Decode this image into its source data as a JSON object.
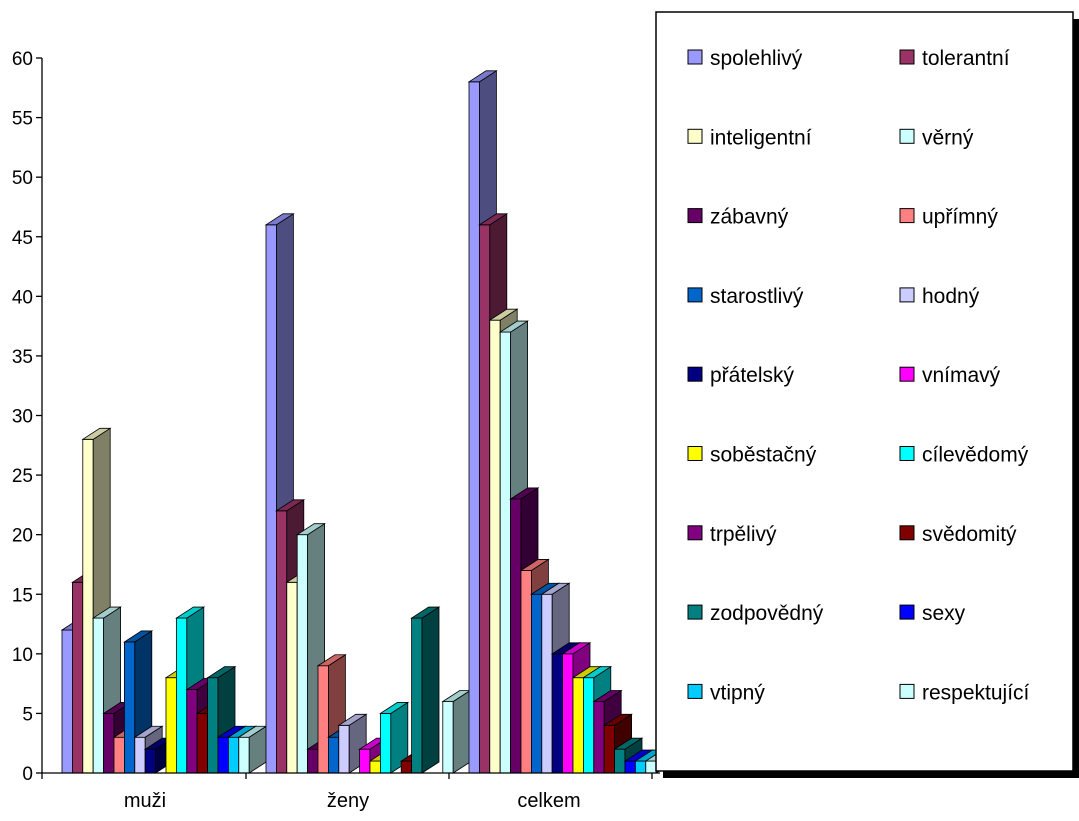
{
  "chart_data": {
    "type": "bar",
    "title": "",
    "xlabel": "",
    "ylabel": "",
    "ylim": [
      0,
      60
    ],
    "yticks": [
      "0",
      "5",
      "10",
      "15",
      "20",
      "25",
      "30",
      "35",
      "40",
      "45",
      "50",
      "55",
      "60"
    ],
    "grid": false,
    "legend_placement": "right",
    "categories": [
      "muži",
      "ženy",
      "celkem"
    ],
    "series": [
      {
        "name": "spolehlivý",
        "color": "#9999FF",
        "values": [
          12,
          46,
          58
        ]
      },
      {
        "name": "tolerantní",
        "color": "#993366",
        "values": [
          16,
          22,
          46
        ]
      },
      {
        "name": "inteligentní",
        "color": "#FFFFCC",
        "values": [
          28,
          16,
          38
        ]
      },
      {
        "name": "věrný",
        "color": "#CCFFFF",
        "values": [
          13,
          20,
          37
        ]
      },
      {
        "name": "zábavný",
        "color": "#660066",
        "values": [
          5,
          2,
          23
        ]
      },
      {
        "name": "upřímný",
        "color": "#FF8080",
        "values": [
          3,
          9,
          17
        ]
      },
      {
        "name": "starostlivý",
        "color": "#0066CC",
        "values": [
          11,
          3,
          15
        ]
      },
      {
        "name": "hodný",
        "color": "#CCCCFF",
        "values": [
          3,
          4,
          15
        ]
      },
      {
        "name": "přátelský",
        "color": "#000080",
        "values": [
          2,
          0,
          10
        ]
      },
      {
        "name": "vnímavý",
        "color": "#FF00FF",
        "values": [
          0,
          2,
          10
        ]
      },
      {
        "name": "soběstačný",
        "color": "#FFFF00",
        "values": [
          8,
          1,
          8
        ]
      },
      {
        "name": "cílevědomý",
        "color": "#00FFFF",
        "values": [
          13,
          5,
          8
        ]
      },
      {
        "name": "trpělivý",
        "color": "#800080",
        "values": [
          7,
          0,
          6
        ]
      },
      {
        "name": "svědomitý",
        "color": "#800000",
        "values": [
          5,
          1,
          4
        ]
      },
      {
        "name": "zodpovědný",
        "color": "#008080",
        "values": [
          8,
          13,
          2
        ]
      },
      {
        "name": "sexy",
        "color": "#0000FF",
        "values": [
          3,
          0,
          1
        ]
      },
      {
        "name": "vtipný",
        "color": "#00CCFF",
        "values": [
          3,
          0,
          1
        ]
      },
      {
        "name": "respektující",
        "color": "#CCFFFF",
        "values": [
          3,
          6,
          1
        ]
      }
    ]
  }
}
